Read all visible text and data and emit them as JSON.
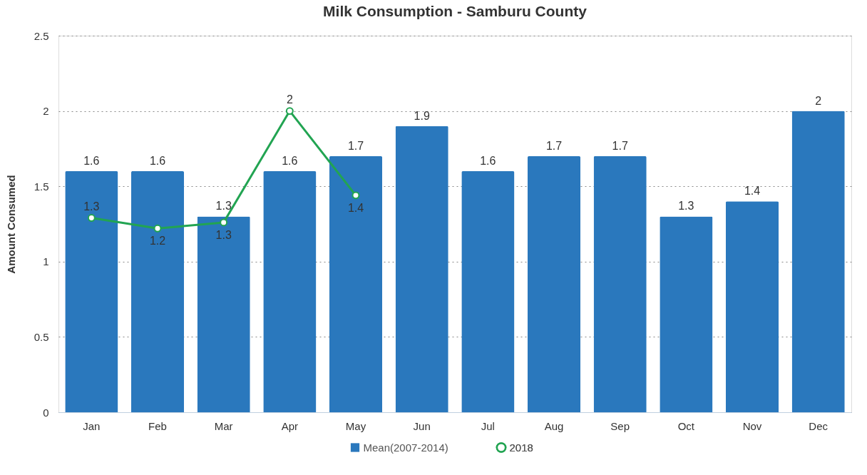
{
  "chart_data": {
    "type": "bar",
    "title": "Milk Consumption - Samburu County",
    "ylabel": "Amount Consumed",
    "categories": [
      "Jan",
      "Feb",
      "Mar",
      "Apr",
      "May",
      "Jun",
      "Jul",
      "Aug",
      "Sep",
      "Oct",
      "Nov",
      "Dec"
    ],
    "series": [
      {
        "name": "Mean(2007-2014)",
        "color": "#2a78bd",
        "values": [
          1.6,
          1.6,
          1.3,
          1.6,
          1.7,
          1.9,
          1.6,
          1.7,
          1.7,
          1.3,
          1.4,
          2
        ],
        "value_labels": [
          "1.6",
          "1.6",
          "1.3",
          "1.6",
          "1.7",
          "1.9",
          "1.6",
          "1.7",
          "1.7",
          "1.3",
          "1.4",
          "2"
        ]
      },
      {
        "name": "2018",
        "type": "line",
        "color": "#22a452",
        "values": [
          1.29,
          1.22,
          1.26,
          2,
          1.44,
          null,
          null,
          null,
          null,
          null,
          null,
          null
        ],
        "value_labels": [
          "1.3",
          "1.2",
          "1.3",
          "2",
          "1.4",
          null,
          null,
          null,
          null,
          null,
          null,
          null
        ]
      }
    ],
    "ylim": [
      0,
      2.5
    ],
    "yticks": [
      0,
      0.5,
      1,
      1.5,
      2,
      2.5
    ],
    "grid": "y",
    "legend": "bottom",
    "marker": "circle",
    "line_style": "solid"
  }
}
